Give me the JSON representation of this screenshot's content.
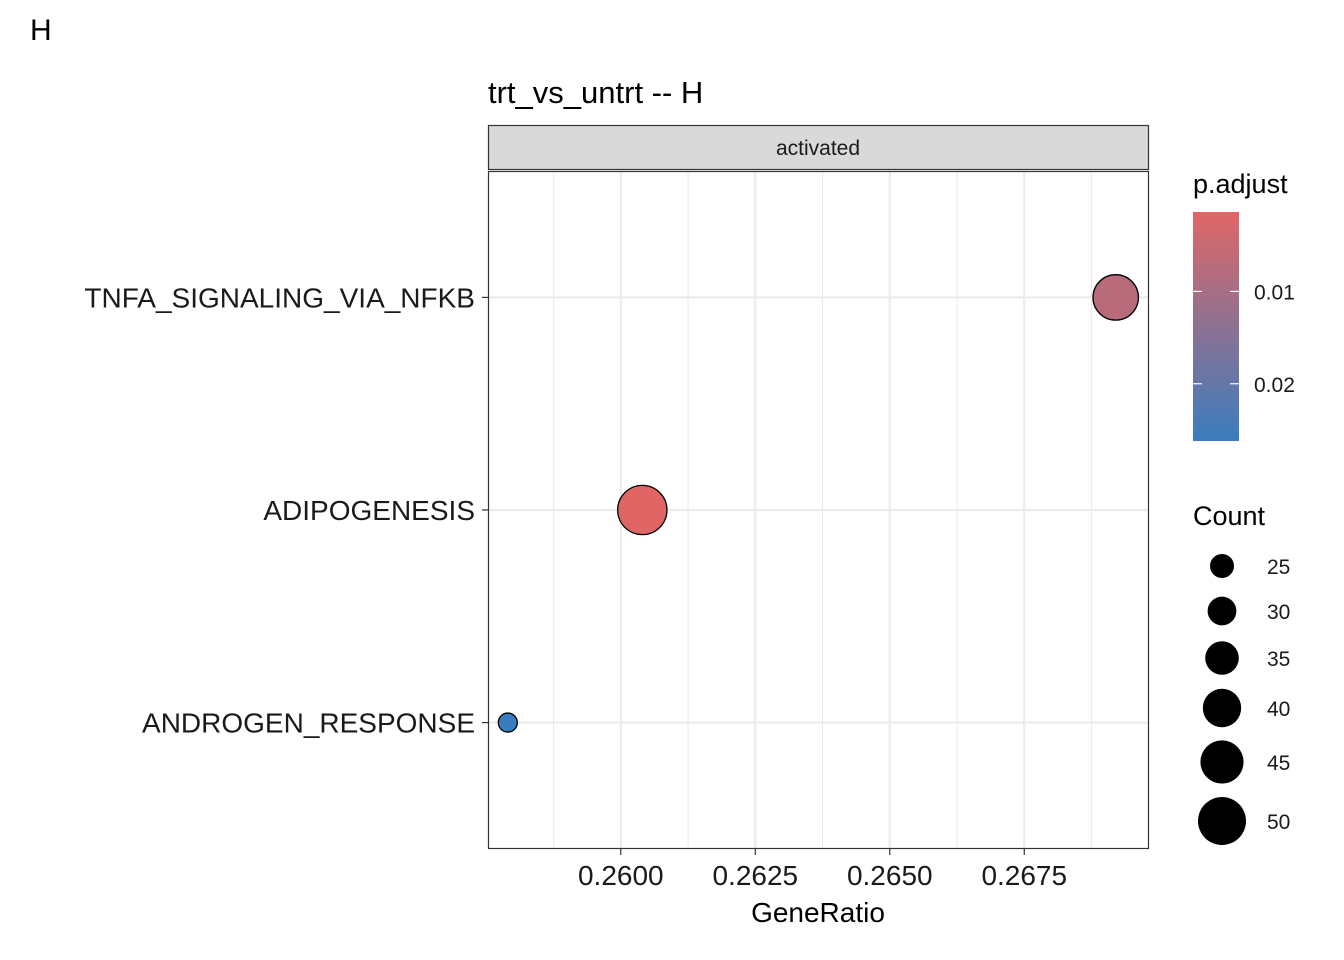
{
  "tag": "H",
  "chart_data": {
    "type": "scatter",
    "title": "trt_vs_untrt -- H",
    "facet_label": "activated",
    "xlabel": "GeneRatio",
    "ylabel": "",
    "xlim": [
      0.25755,
      0.2698
    ],
    "x_ticks": [
      0.26,
      0.2625,
      0.265,
      0.2675
    ],
    "x_tick_labels": [
      "0.2600",
      "0.2625",
      "0.2650",
      "0.2675"
    ],
    "categories": [
      "TNFA_SIGNALING_VIA_NFKB",
      "ADIPOGENESIS",
      "ANDROGEN_RESPONSE"
    ],
    "points": [
      {
        "term": "TNFA_SIGNALING_VIA_NFKB",
        "gene_ratio": 0.2692,
        "count": 46,
        "p_adjust": 0.0074
      },
      {
        "term": "ADIPOGENESIS",
        "gene_ratio": 0.2604,
        "count": 52,
        "p_adjust": 0.0014
      },
      {
        "term": "ANDROGEN_RESPONSE",
        "gene_ratio": 0.2579,
        "count": 25,
        "p_adjust": 0.0262
      }
    ],
    "grid": true,
    "color_legend": {
      "title": "p.adjust",
      "ticks": [
        0.01,
        0.02
      ],
      "tick_labels": [
        "0.01",
        "0.02"
      ],
      "range": [
        0.0014,
        0.0262
      ],
      "low_color": "#E06666",
      "high_color": "#3A7DBE"
    },
    "size_legend": {
      "title": "Count",
      "values": [
        25,
        30,
        35,
        40,
        45,
        50
      ],
      "labels": [
        "25",
        "30",
        "35",
        "40",
        "45",
        "50"
      ]
    },
    "legend_position": "right"
  }
}
